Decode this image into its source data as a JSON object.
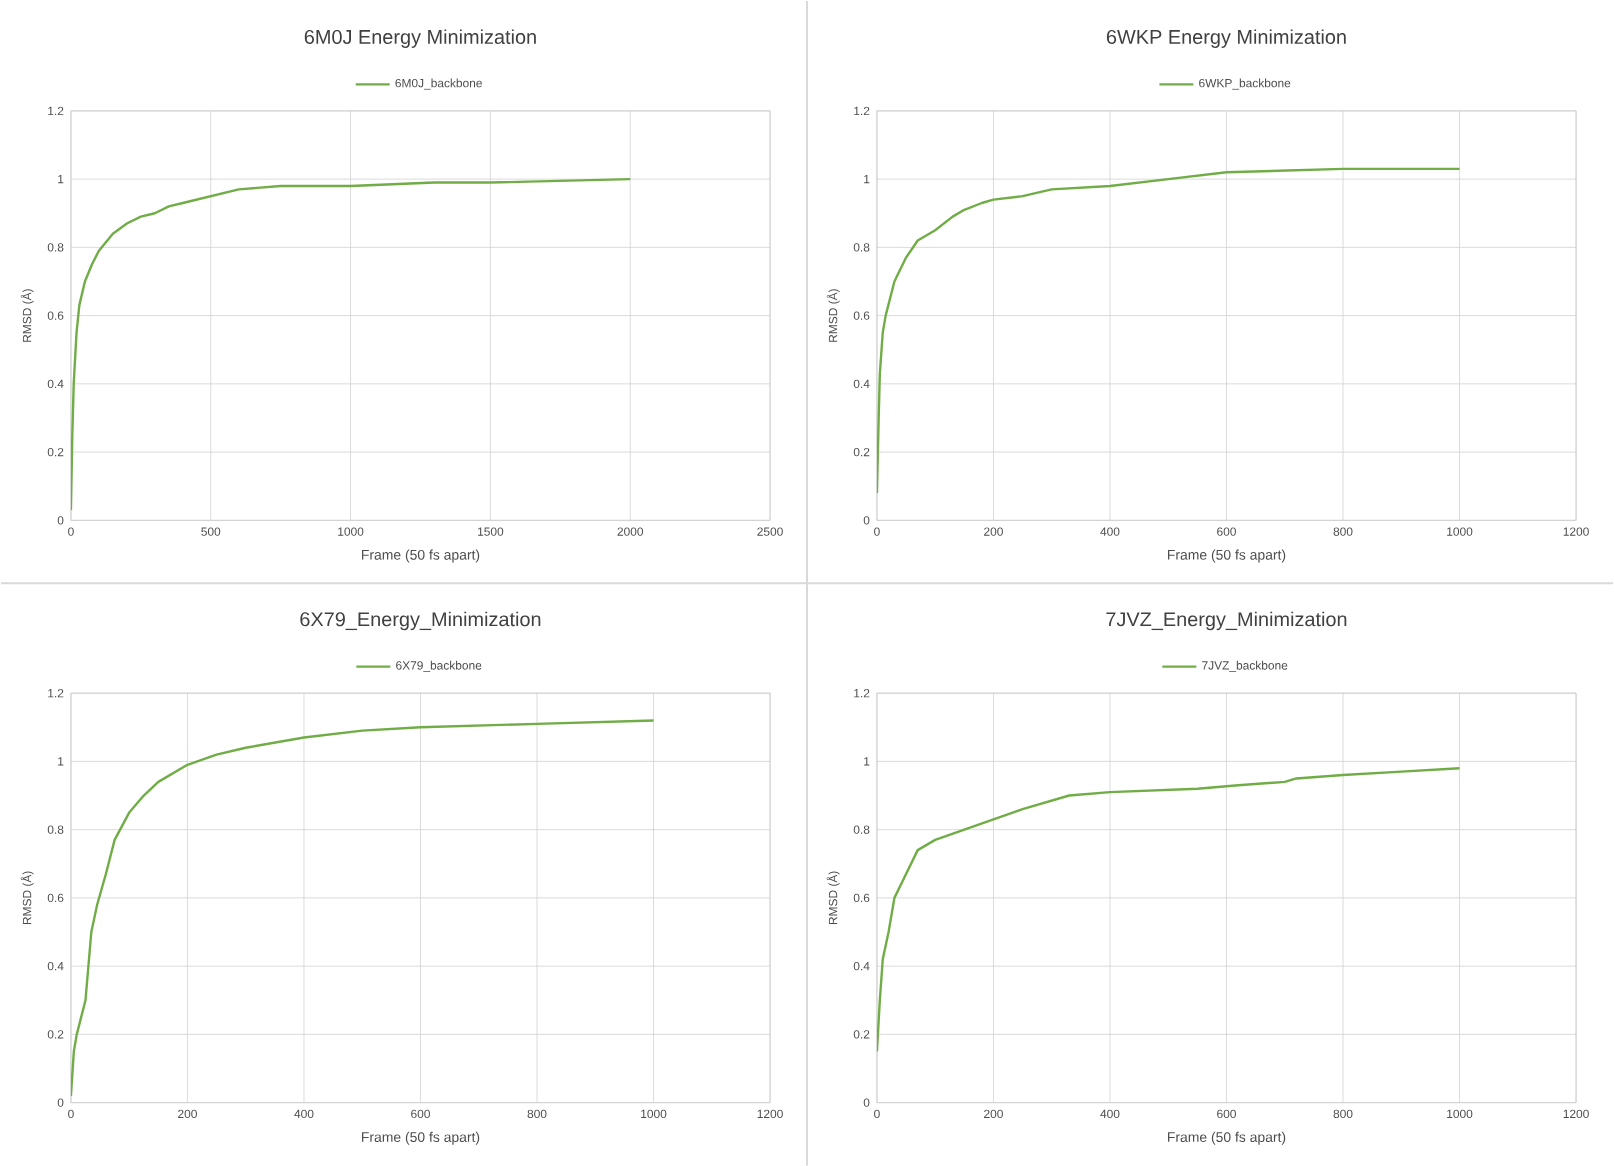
{
  "chart_data": [
    {
      "type": "line",
      "title": "6M0J Energy Minimization",
      "xlabel": "Frame (50 fs apart)",
      "ylabel": "RMSD (Å)",
      "grid": true,
      "legend": "top",
      "xlim": [
        0,
        2500
      ],
      "xticks": [
        0,
        500,
        1000,
        1500,
        2000,
        2500
      ],
      "ylim": [
        0,
        1.2
      ],
      "yticks": [
        0,
        0.2,
        0.4,
        0.6,
        0.8,
        1,
        1.2
      ],
      "series": [
        {
          "name": "6M0J_backbone",
          "color": "#70ad47",
          "x": [
            0,
            5,
            10,
            20,
            30,
            50,
            75,
            100,
            150,
            200,
            250,
            300,
            350,
            400,
            500,
            600,
            750,
            1000,
            1300,
            1500,
            2000
          ],
          "values": [
            0.03,
            0.25,
            0.4,
            0.55,
            0.63,
            0.7,
            0.75,
            0.79,
            0.84,
            0.87,
            0.89,
            0.9,
            0.92,
            0.93,
            0.95,
            0.97,
            0.98,
            0.98,
            0.99,
            0.99,
            1.0
          ]
        }
      ]
    },
    {
      "type": "line",
      "title": "6WKP Energy Minimization",
      "xlabel": "Frame (50 fs apart)",
      "ylabel": "RMSD (Å)",
      "grid": true,
      "legend": "top",
      "xlim": [
        0,
        1200
      ],
      "xticks": [
        0,
        200,
        400,
        600,
        800,
        1000,
        1200
      ],
      "ylim": [
        0,
        1.2
      ],
      "yticks": [
        0,
        0.2,
        0.4,
        0.6,
        0.8,
        1,
        1.2
      ],
      "series": [
        {
          "name": "6WKP_backbone",
          "color": "#70ad47",
          "x": [
            0,
            3,
            5,
            10,
            15,
            30,
            50,
            70,
            100,
            130,
            150,
            180,
            200,
            250,
            300,
            400,
            500,
            600,
            800,
            1000
          ],
          "values": [
            0.08,
            0.3,
            0.43,
            0.55,
            0.6,
            0.7,
            0.77,
            0.82,
            0.85,
            0.89,
            0.91,
            0.93,
            0.94,
            0.95,
            0.97,
            0.98,
            1.0,
            1.02,
            1.03,
            1.03
          ]
        }
      ]
    },
    {
      "type": "line",
      "title": "6X79_Energy_Minimization",
      "xlabel": "Frame (50 fs apart)",
      "ylabel": "RMSD (Å)",
      "grid": true,
      "legend": "top",
      "xlim": [
        0,
        1200
      ],
      "xticks": [
        0,
        200,
        400,
        600,
        800,
        1000,
        1200
      ],
      "ylim": [
        0,
        1.2
      ],
      "yticks": [
        0,
        0.2,
        0.4,
        0.6,
        0.8,
        1,
        1.2
      ],
      "series": [
        {
          "name": "6X79_backbone",
          "color": "#70ad47",
          "x": [
            0,
            5,
            10,
            25,
            35,
            45,
            60,
            75,
            100,
            125,
            150,
            200,
            250,
            300,
            400,
            500,
            600,
            800,
            1000
          ],
          "values": [
            0.02,
            0.15,
            0.2,
            0.3,
            0.5,
            0.58,
            0.67,
            0.77,
            0.85,
            0.9,
            0.94,
            0.99,
            1.02,
            1.04,
            1.07,
            1.09,
            1.1,
            1.11,
            1.12
          ]
        }
      ]
    },
    {
      "type": "line",
      "title": "7JVZ_Energy_Minimization",
      "xlabel": "Frame (50 fs apart)",
      "ylabel": "RMSD (Å)",
      "grid": true,
      "legend": "top",
      "xlim": [
        0,
        1200
      ],
      "xticks": [
        0,
        200,
        400,
        600,
        800,
        1000,
        1200
      ],
      "ylim": [
        0,
        1.2
      ],
      "yticks": [
        0,
        0.2,
        0.4,
        0.6,
        0.8,
        1,
        1.2
      ],
      "series": [
        {
          "name": "7JVZ_backbone",
          "color": "#70ad47",
          "x": [
            0,
            5,
            10,
            20,
            30,
            50,
            70,
            100,
            150,
            200,
            250,
            330,
            400,
            550,
            620,
            700,
            720,
            800,
            900,
            1000
          ],
          "values": [
            0.15,
            0.3,
            0.42,
            0.5,
            0.6,
            0.67,
            0.74,
            0.77,
            0.8,
            0.83,
            0.86,
            0.9,
            0.91,
            0.92,
            0.93,
            0.94,
            0.95,
            0.96,
            0.97,
            0.98
          ]
        }
      ]
    }
  ]
}
